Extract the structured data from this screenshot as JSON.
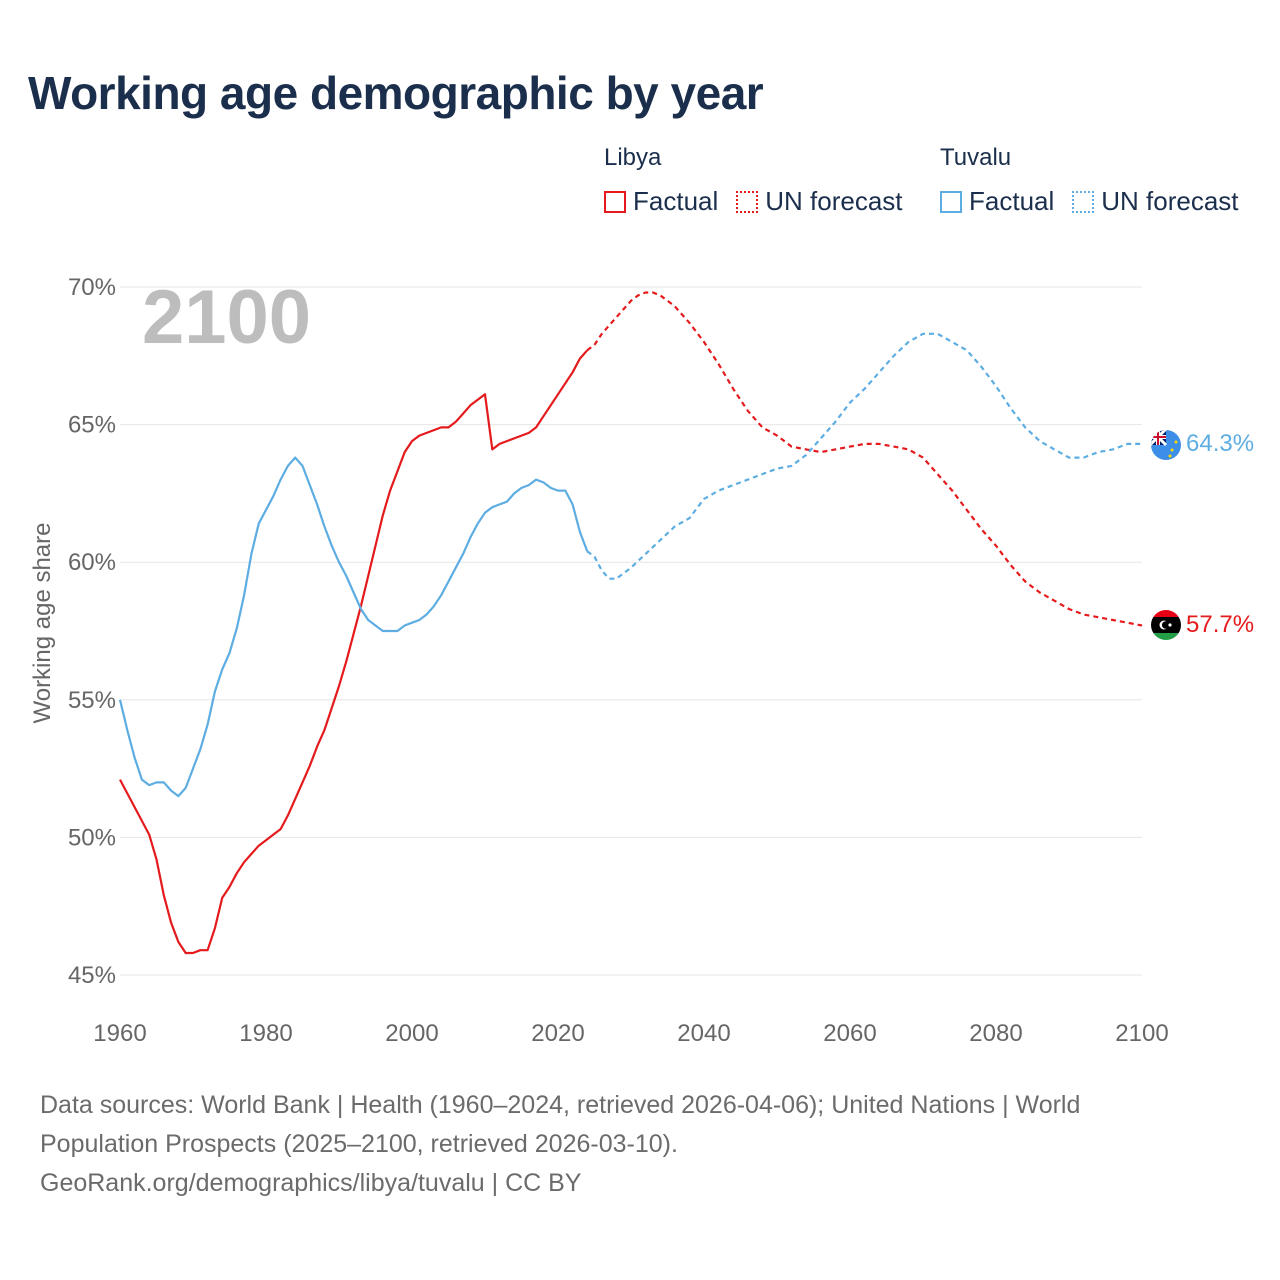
{
  "title": "Working age demographic by year",
  "legend": {
    "groups": [
      {
        "country": "Libya",
        "color": "#e41a1c",
        "factual": "Factual",
        "forecast": "UN forecast"
      },
      {
        "country": "Tuvalu",
        "color": "#5dade2",
        "factual": "Factual",
        "forecast": "UN forecast"
      }
    ]
  },
  "year_overlay": "2100",
  "end_labels": {
    "libya": "57.7%",
    "tuvalu": "64.3%"
  },
  "flags": {
    "libya": "libya-flag-icon",
    "tuvalu": "tuvalu-flag-icon"
  },
  "sources": {
    "line1": "Data sources: World Bank | Health (1960–2024, retrieved 2026-04-06); United Nations | World",
    "line2": "Population Prospects (2025–2100, retrieved 2026-03-10).",
    "line3": "GeoRank.org/demographics/libya/tuvalu | CC BY"
  },
  "chart_data": {
    "type": "line",
    "title": "Working age demographic by year",
    "xlabel": "",
    "ylabel": "Working age share",
    "xlim": [
      1960,
      2100
    ],
    "ylim": [
      45,
      70
    ],
    "x_ticks": [
      1960,
      1980,
      2000,
      2020,
      2040,
      2060,
      2080,
      2100
    ],
    "y_ticks": [
      45,
      50,
      55,
      60,
      65,
      70
    ],
    "y_tick_labels": [
      "45%",
      "50%",
      "55%",
      "60%",
      "65%",
      "70%"
    ],
    "grid": true,
    "legend_position": "top-right",
    "forecast_start": 2024,
    "series": [
      {
        "name": "Libya",
        "color": "#e41a1c",
        "points": [
          [
            1960,
            52.1
          ],
          [
            1962,
            51.1
          ],
          [
            1964,
            50.1
          ],
          [
            1965,
            49.2
          ],
          [
            1966,
            47.9
          ],
          [
            1967,
            46.9
          ],
          [
            1968,
            46.2
          ],
          [
            1969,
            45.8
          ],
          [
            1970,
            45.8
          ],
          [
            1971,
            45.9
          ],
          [
            1972,
            45.9
          ],
          [
            1973,
            46.7
          ],
          [
            1974,
            47.8
          ],
          [
            1975,
            48.2
          ],
          [
            1976,
            48.7
          ],
          [
            1977,
            49.1
          ],
          [
            1978,
            49.4
          ],
          [
            1979,
            49.7
          ],
          [
            1980,
            49.9
          ],
          [
            1981,
            50.1
          ],
          [
            1982,
            50.3
          ],
          [
            1983,
            50.8
          ],
          [
            1984,
            51.4
          ],
          [
            1985,
            52.0
          ],
          [
            1986,
            52.6
          ],
          [
            1987,
            53.3
          ],
          [
            1988,
            53.9
          ],
          [
            1989,
            54.7
          ],
          [
            1990,
            55.5
          ],
          [
            1991,
            56.4
          ],
          [
            1992,
            57.4
          ],
          [
            1993,
            58.4
          ],
          [
            1994,
            59.5
          ],
          [
            1995,
            60.6
          ],
          [
            1996,
            61.7
          ],
          [
            1997,
            62.6
          ],
          [
            1998,
            63.3
          ],
          [
            1999,
            64.0
          ],
          [
            2000,
            64.4
          ],
          [
            2001,
            64.6
          ],
          [
            2002,
            64.7
          ],
          [
            2003,
            64.8
          ],
          [
            2004,
            64.9
          ],
          [
            2005,
            64.9
          ],
          [
            2006,
            65.1
          ],
          [
            2007,
            65.4
          ],
          [
            2008,
            65.7
          ],
          [
            2009,
            65.9
          ],
          [
            2010,
            66.1
          ],
          [
            2011,
            64.1
          ],
          [
            2012,
            64.3
          ],
          [
            2013,
            64.4
          ],
          [
            2014,
            64.5
          ],
          [
            2015,
            64.6
          ],
          [
            2016,
            64.7
          ],
          [
            2017,
            64.9
          ],
          [
            2018,
            65.3
          ],
          [
            2019,
            65.7
          ],
          [
            2020,
            66.1
          ],
          [
            2021,
            66.5
          ],
          [
            2022,
            66.9
          ],
          [
            2023,
            67.4
          ],
          [
            2024,
            67.7
          ],
          [
            2025,
            67.9
          ],
          [
            2026,
            68.3
          ],
          [
            2027,
            68.6
          ],
          [
            2028,
            68.9
          ],
          [
            2029,
            69.2
          ],
          [
            2030,
            69.5
          ],
          [
            2031,
            69.7
          ],
          [
            2032,
            69.8
          ],
          [
            2033,
            69.8
          ],
          [
            2034,
            69.7
          ],
          [
            2035,
            69.5
          ],
          [
            2036,
            69.3
          ],
          [
            2038,
            68.7
          ],
          [
            2040,
            68.0
          ],
          [
            2042,
            67.2
          ],
          [
            2044,
            66.3
          ],
          [
            2046,
            65.5
          ],
          [
            2048,
            64.9
          ],
          [
            2050,
            64.6
          ],
          [
            2052,
            64.2
          ],
          [
            2054,
            64.1
          ],
          [
            2056,
            64.0
          ],
          [
            2058,
            64.1
          ],
          [
            2060,
            64.2
          ],
          [
            2062,
            64.3
          ],
          [
            2064,
            64.3
          ],
          [
            2066,
            64.2
          ],
          [
            2068,
            64.1
          ],
          [
            2070,
            63.8
          ],
          [
            2072,
            63.2
          ],
          [
            2074,
            62.6
          ],
          [
            2076,
            61.9
          ],
          [
            2078,
            61.2
          ],
          [
            2080,
            60.6
          ],
          [
            2082,
            59.9
          ],
          [
            2084,
            59.3
          ],
          [
            2086,
            58.9
          ],
          [
            2088,
            58.6
          ],
          [
            2090,
            58.3
          ],
          [
            2092,
            58.1
          ],
          [
            2094,
            58.0
          ],
          [
            2096,
            57.9
          ],
          [
            2098,
            57.8
          ],
          [
            2100,
            57.7
          ]
        ]
      },
      {
        "name": "Tuvalu",
        "color": "#5dade2",
        "points": [
          [
            1960,
            55.0
          ],
          [
            1961,
            53.9
          ],
          [
            1962,
            52.9
          ],
          [
            1963,
            52.1
          ],
          [
            1964,
            51.9
          ],
          [
            1965,
            52.0
          ],
          [
            1966,
            52.0
          ],
          [
            1967,
            51.7
          ],
          [
            1968,
            51.5
          ],
          [
            1969,
            51.8
          ],
          [
            1970,
            52.5
          ],
          [
            1971,
            53.2
          ],
          [
            1972,
            54.1
          ],
          [
            1973,
            55.3
          ],
          [
            1974,
            56.1
          ],
          [
            1975,
            56.7
          ],
          [
            1976,
            57.6
          ],
          [
            1977,
            58.8
          ],
          [
            1978,
            60.3
          ],
          [
            1979,
            61.4
          ],
          [
            1980,
            61.9
          ],
          [
            1981,
            62.4
          ],
          [
            1982,
            63.0
          ],
          [
            1983,
            63.5
          ],
          [
            1984,
            63.8
          ],
          [
            1985,
            63.5
          ],
          [
            1986,
            62.8
          ],
          [
            1987,
            62.1
          ],
          [
            1988,
            61.3
          ],
          [
            1989,
            60.6
          ],
          [
            1990,
            60.0
          ],
          [
            1991,
            59.5
          ],
          [
            1992,
            58.9
          ],
          [
            1993,
            58.3
          ],
          [
            1994,
            57.9
          ],
          [
            1995,
            57.7
          ],
          [
            1996,
            57.5
          ],
          [
            1997,
            57.5
          ],
          [
            1998,
            57.5
          ],
          [
            1999,
            57.7
          ],
          [
            2000,
            57.8
          ],
          [
            2001,
            57.9
          ],
          [
            2002,
            58.1
          ],
          [
            2003,
            58.4
          ],
          [
            2004,
            58.8
          ],
          [
            2005,
            59.3
          ],
          [
            2006,
            59.8
          ],
          [
            2007,
            60.3
          ],
          [
            2008,
            60.9
          ],
          [
            2009,
            61.4
          ],
          [
            2010,
            61.8
          ],
          [
            2011,
            62.0
          ],
          [
            2012,
            62.1
          ],
          [
            2013,
            62.2
          ],
          [
            2014,
            62.5
          ],
          [
            2015,
            62.7
          ],
          [
            2016,
            62.8
          ],
          [
            2017,
            63.0
          ],
          [
            2018,
            62.9
          ],
          [
            2019,
            62.7
          ],
          [
            2020,
            62.6
          ],
          [
            2021,
            62.6
          ],
          [
            2022,
            62.1
          ],
          [
            2023,
            61.1
          ],
          [
            2024,
            60.4
          ],
          [
            2025,
            60.2
          ],
          [
            2026,
            59.7
          ],
          [
            2027,
            59.4
          ],
          [
            2028,
            59.4
          ],
          [
            2030,
            59.8
          ],
          [
            2032,
            60.3
          ],
          [
            2034,
            60.8
          ],
          [
            2036,
            61.3
          ],
          [
            2038,
            61.6
          ],
          [
            2040,
            62.3
          ],
          [
            2042,
            62.6
          ],
          [
            2044,
            62.8
          ],
          [
            2046,
            63.0
          ],
          [
            2048,
            63.2
          ],
          [
            2050,
            63.4
          ],
          [
            2052,
            63.5
          ],
          [
            2054,
            63.9
          ],
          [
            2056,
            64.5
          ],
          [
            2058,
            65.1
          ],
          [
            2060,
            65.8
          ],
          [
            2062,
            66.3
          ],
          [
            2064,
            66.9
          ],
          [
            2066,
            67.5
          ],
          [
            2068,
            68.0
          ],
          [
            2070,
            68.3
          ],
          [
            2072,
            68.3
          ],
          [
            2074,
            68.0
          ],
          [
            2076,
            67.7
          ],
          [
            2078,
            67.1
          ],
          [
            2080,
            66.4
          ],
          [
            2082,
            65.6
          ],
          [
            2084,
            64.9
          ],
          [
            2086,
            64.4
          ],
          [
            2088,
            64.1
          ],
          [
            2090,
            63.8
          ],
          [
            2092,
            63.8
          ],
          [
            2094,
            64.0
          ],
          [
            2096,
            64.1
          ],
          [
            2098,
            64.3
          ],
          [
            2100,
            64.3
          ]
        ]
      }
    ]
  }
}
